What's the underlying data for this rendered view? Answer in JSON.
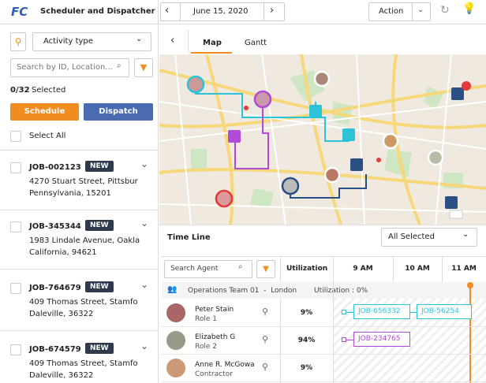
{
  "header": {
    "logo": "FC",
    "title": "Scheduler and Dispatcher",
    "date": "June 15, 2020",
    "action": "Action"
  },
  "sidebar": {
    "activity_type": "Activity type",
    "search_placeholder": "Search by ID, Location...",
    "selected_count": "0/32",
    "selected_label": "Selected",
    "schedule": "Schedule",
    "dispatch": "Dispatch",
    "select_all": "Select All",
    "jobs": [
      {
        "id": "JOB-002123",
        "badge": "NEW",
        "address": [
          "4270 Stuart Street, Pittsbur",
          "Pennsylvania, 15201"
        ]
      },
      {
        "id": "JOB-345344",
        "badge": "NEW",
        "address": [
          "1983 Lindale Avenue, Oakla",
          "California, 94621"
        ]
      },
      {
        "id": "JOB-764679",
        "badge": "NEW",
        "address": [
          "409 Thomas Street, Stamfo",
          "Daleville, 36322"
        ]
      },
      {
        "id": "JOB-674579",
        "badge": "NEW",
        "address": [
          "409 Thomas Street, Stamfo",
          "Daleville, 36322"
        ]
      }
    ]
  },
  "tabs": [
    "Map",
    "Gantt"
  ],
  "timeline": {
    "title": "Time Line",
    "filter": "All Selected",
    "search_placeholder": "Search Agent",
    "utilization_header": "Utilization",
    "hours": [
      "9 AM",
      "10 AM",
      "11 AM"
    ],
    "group": {
      "name": "Operations Team 01  -  London",
      "utilization": "Utilization : 0%"
    },
    "agents": [
      {
        "name": "Peter Stain",
        "role": "Role 1",
        "utilization": "9%",
        "jobs": [
          "JOB-656332",
          "JOB-56254"
        ]
      },
      {
        "name": "Elizabeth G",
        "role": "Role 2",
        "utilization": "94%",
        "jobs": [
          "JOB-234765"
        ]
      },
      {
        "name": "Anne R. McGowa",
        "role": "Contractor",
        "utilization": "9%",
        "jobs": []
      }
    ]
  }
}
